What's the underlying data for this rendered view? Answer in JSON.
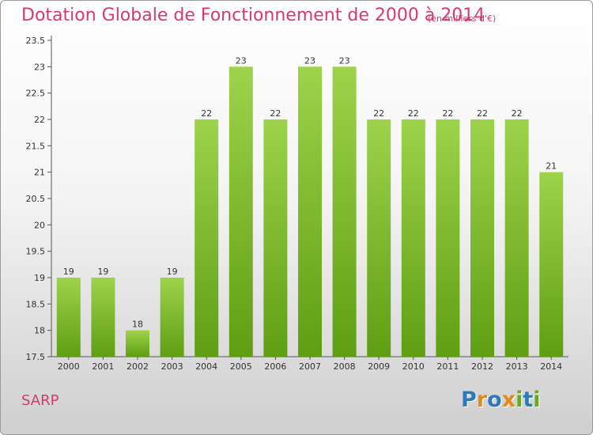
{
  "header": {
    "title": "Dotation Globale de Fonctionnement de 2000 à 2014",
    "unit": "(en milliers d'€)"
  },
  "footer": {
    "commune": "SARP",
    "brand": [
      "P",
      "r",
      "o",
      "x",
      "i",
      "t",
      "i"
    ]
  },
  "colors": {
    "accent": "#d8396b",
    "bar_top": "#9ed34c",
    "bar_bottom": "#5f9e12",
    "logo": [
      "#2f79b8",
      "#e08a1b",
      "#2f79b8",
      "#e08a1b",
      "#6aa821",
      "#2f79b8",
      "#6aa821"
    ]
  },
  "chart_data": {
    "type": "bar",
    "title": "Dotation Globale de Fonctionnement de 2000 à 2014",
    "subtitle": "(en milliers d'€)",
    "categories": [
      "2000",
      "2001",
      "2002",
      "2003",
      "2004",
      "2005",
      "2006",
      "2007",
      "2008",
      "2009",
      "2010",
      "2011",
      "2012",
      "2013",
      "2014"
    ],
    "values": [
      19,
      19,
      18,
      19,
      22,
      23,
      22,
      23,
      23,
      22,
      22,
      22,
      22,
      22,
      21
    ],
    "ylim": [
      17.5,
      23.5
    ],
    "yticks": [
      "17.5",
      "18",
      "18.5",
      "19",
      "19.5",
      "20",
      "20.5",
      "21",
      "21.5",
      "22",
      "22.5",
      "23",
      "23.5"
    ],
    "grid": false,
    "legend": "none"
  }
}
